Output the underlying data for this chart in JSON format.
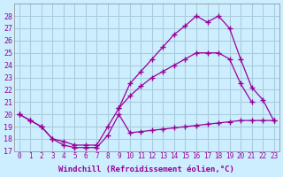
{
  "xlabel": "Windchill (Refroidissement éolien,°C)",
  "bg_color": "#cceeff",
  "grid_color": "#aaccdd",
  "line_color": "#990099",
  "ylim": [
    17,
    29
  ],
  "yticks": [
    17,
    18,
    19,
    20,
    21,
    22,
    23,
    24,
    25,
    26,
    27,
    28
  ],
  "xlim": [
    -0.5,
    23.5
  ],
  "xticks": [
    0,
    1,
    2,
    3,
    4,
    5,
    6,
    7,
    8,
    9,
    10,
    11,
    12,
    13,
    14,
    15,
    16,
    17,
    18,
    19,
    20,
    21,
    22,
    23
  ],
  "line1_x": [
    0,
    1,
    2,
    3,
    4,
    5,
    6,
    7,
    8,
    9,
    10,
    11,
    12,
    13,
    14,
    15,
    16,
    17,
    18,
    19,
    20,
    21,
    22,
    23
  ],
  "line1_y": [
    20.0,
    19.5,
    19.0,
    18.0,
    17.5,
    17.3,
    17.3,
    17.3,
    18.3,
    20.0,
    18.5,
    18.6,
    18.7,
    18.8,
    18.9,
    19.0,
    19.1,
    19.2,
    19.3,
    19.4,
    19.5,
    19.5,
    19.5,
    19.5
  ],
  "line2_x": [
    0,
    1,
    2,
    3,
    4,
    5,
    6,
    7,
    8,
    9,
    10,
    11,
    12,
    13,
    14,
    15,
    16,
    17,
    18,
    19,
    20,
    21
  ],
  "line2_y": [
    20.0,
    19.5,
    19.0,
    18.0,
    17.8,
    17.5,
    17.5,
    17.5,
    19.0,
    20.5,
    21.5,
    22.3,
    23.0,
    23.5,
    24.0,
    24.5,
    25.0,
    25.0,
    25.0,
    24.5,
    22.5,
    21.0
  ],
  "line3_x": [
    9,
    10,
    11,
    12,
    13,
    14,
    15,
    16,
    17,
    18,
    19,
    20,
    21,
    22,
    23
  ],
  "line3_y": [
    20.5,
    22.5,
    23.5,
    24.5,
    25.5,
    26.5,
    27.2,
    28.0,
    27.5,
    28.0,
    27.0,
    24.5,
    22.2,
    21.2,
    19.5
  ]
}
